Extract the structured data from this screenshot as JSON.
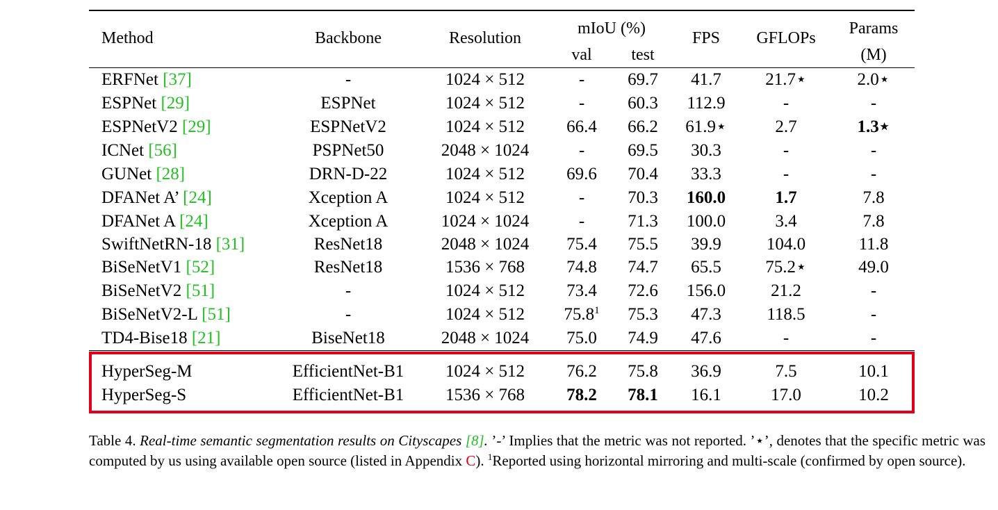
{
  "table": {
    "headers": {
      "method": "Method",
      "backbone": "Backbone",
      "resolution": "Resolution",
      "miou_group": "mIoU (%)",
      "val": "val",
      "test": "test",
      "fps": "FPS",
      "gflops": "GFLOPs",
      "params_line1": "Params",
      "params_line2": "(M)"
    },
    "rows": [
      {
        "method": "ERFNet ",
        "cite": "[37]",
        "backbone": "-",
        "resolution": "1024 × 512",
        "val": "-",
        "test": "69.7",
        "fps": "41.7",
        "gflops": "21.7⋆",
        "params": "2.0⋆"
      },
      {
        "method": "ESPNet ",
        "cite": "[29]",
        "backbone": "ESPNet",
        "resolution": "1024 × 512",
        "val": "-",
        "test": "60.3",
        "fps": "112.9",
        "gflops": "-",
        "params": "-"
      },
      {
        "method": "ESPNetV2 ",
        "cite": "[29]",
        "backbone": "ESPNetV2",
        "resolution": "1024 × 512",
        "val": "66.4",
        "test": "66.2",
        "fps": "61.9⋆",
        "gflops": "2.7",
        "params": "1.3⋆"
      },
      {
        "method": "ICNet ",
        "cite": "[56]",
        "backbone": "PSPNet50",
        "resolution": "2048 × 1024",
        "val": "-",
        "test": "69.5",
        "fps": "30.3",
        "gflops": "-",
        "params": "-"
      },
      {
        "method": "GUNet ",
        "cite": "[28]",
        "backbone": "DRN-D-22",
        "resolution": "1024 × 512",
        "val": "69.6",
        "test": "70.4",
        "fps": "33.3",
        "gflops": "-",
        "params": "-"
      },
      {
        "method": "DFANet A’ ",
        "cite": "[24]",
        "backbone": "Xception A",
        "resolution": "1024 × 512",
        "val": "-",
        "test": "70.3",
        "fps": "160.0",
        "gflops": "1.7",
        "params": "7.8"
      },
      {
        "method": "DFANet A ",
        "cite": "[24]",
        "backbone": "Xception A",
        "resolution": "1024 × 1024",
        "val": "-",
        "test": "71.3",
        "fps": "100.0",
        "gflops": "3.4",
        "params": "7.8"
      },
      {
        "method": "SwiftNetRN-18 ",
        "cite": "[31]",
        "backbone": "ResNet18",
        "resolution": "2048 × 1024",
        "val": "75.4",
        "test": "75.5",
        "fps": "39.9",
        "gflops": "104.0",
        "params": "11.8"
      },
      {
        "method": "BiSeNetV1 ",
        "cite": "[52]",
        "backbone": "ResNet18",
        "resolution": "1536 × 768",
        "val": "74.8",
        "test": "74.7",
        "fps": "65.5",
        "gflops": "75.2⋆",
        "params": "49.0"
      },
      {
        "method": "BiSeNetV2 ",
        "cite": "[51]",
        "backbone": "-",
        "resolution": "1024 × 512",
        "val": "73.4",
        "test": "72.6",
        "fps": "156.0",
        "gflops": "21.2",
        "params": "-"
      },
      {
        "method": "BiSeNetV2-L ",
        "cite": "[51]",
        "backbone": "-",
        "resolution": "1024 × 512",
        "val": "75.8",
        "val_sup": "1",
        "test": "75.3",
        "fps": "47.3",
        "gflops": "118.5",
        "params": "-"
      },
      {
        "method": "TD4-Bise18 ",
        "cite": "[21]",
        "backbone": "BiseNet18",
        "resolution": "2048 × 1024",
        "val": "75.0",
        "test": "74.9",
        "fps": "47.6",
        "gflops": "-",
        "params": "-"
      },
      {
        "method": "HyperSeg-M",
        "cite": "",
        "backbone": "EfficientNet-B1",
        "resolution": "1024 × 512",
        "val": "76.2",
        "test": "75.8",
        "fps": "36.9",
        "gflops": "7.5",
        "params": "10.1"
      },
      {
        "method": "HyperSeg-S",
        "cite": "",
        "backbone": "EfficientNet-B1",
        "resolution": "1536 × 768",
        "val": "78.2",
        "test": "78.1",
        "fps": "16.1",
        "gflops": "17.0",
        "params": "10.2"
      }
    ]
  },
  "caption": {
    "label": "Table 4. ",
    "title_pre": "Real-time semantic segmentation results on Cityscapes ",
    "title_cite": "[8]",
    "title_post": ".",
    "text1": "  ’-’ Implies that the metric was not reported.  ’⋆’, denotes that the specific metric was computed by us using available open source (listed in Appendix ",
    "appendix_ref": "C",
    "text2": ").  ",
    "footnote_mark": "1",
    "text3": "Reported using horizontal mirroring and multi-scale (confirmed by open source)."
  }
}
